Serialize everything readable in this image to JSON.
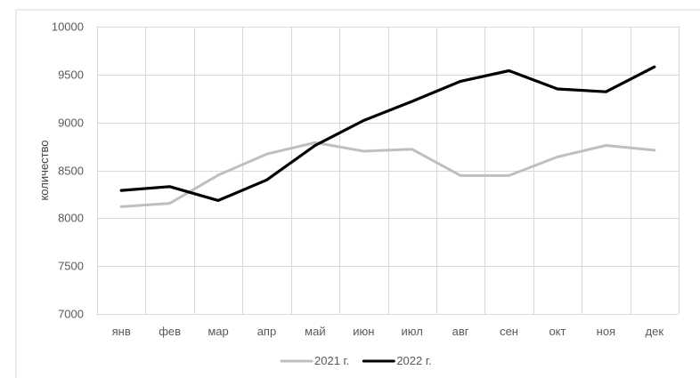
{
  "chart_data": {
    "type": "line",
    "title": "",
    "xlabel": "",
    "ylabel": "количество",
    "categories": [
      "янв",
      "фев",
      "мар",
      "апр",
      "май",
      "июн",
      "июл",
      "авг",
      "сен",
      "окт",
      "ноя",
      "дек"
    ],
    "ylim": [
      7000,
      10000
    ],
    "yticks": [
      7000,
      7500,
      8000,
      8500,
      9000,
      9500,
      10000
    ],
    "grid": true,
    "legend_position": "bottom",
    "series": [
      {
        "name": "2021 г.",
        "color": "#bfbfbf",
        "values": [
          8120,
          8155,
          8450,
          8670,
          8790,
          8700,
          8720,
          8445,
          8445,
          8640,
          8760,
          8710
        ]
      },
      {
        "name": "2022 г.",
        "color": "#000000",
        "values": [
          8290,
          8330,
          8185,
          8400,
          8760,
          9020,
          9220,
          9430,
          9540,
          9350,
          9320,
          9580
        ]
      }
    ]
  }
}
